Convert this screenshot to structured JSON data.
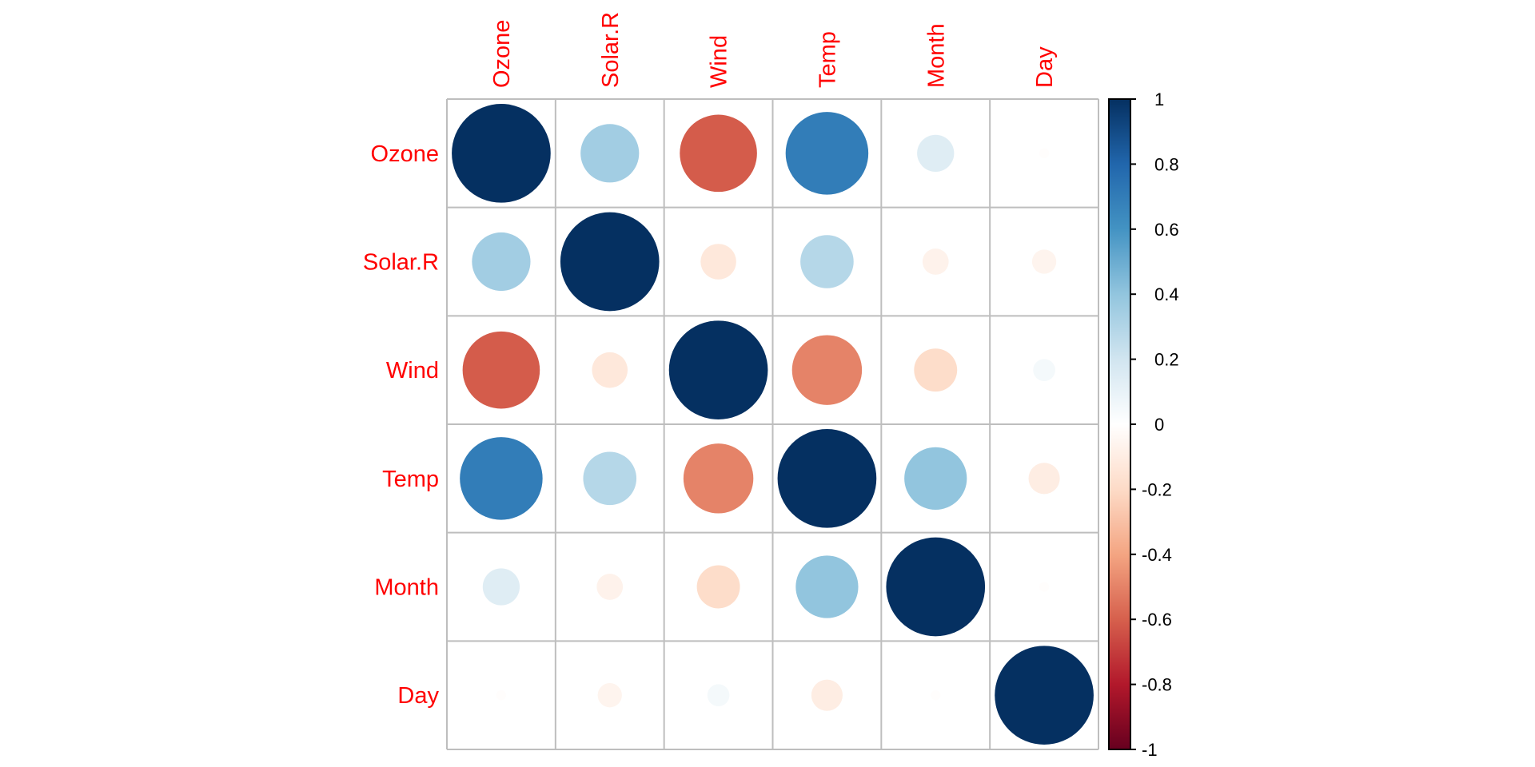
{
  "chart_data": {
    "type": "heatmap",
    "method": "circle",
    "title": "",
    "variables": [
      "Ozone",
      "Solar.R",
      "Wind",
      "Temp",
      "Month",
      "Day"
    ],
    "row_labels": [
      "Ozone",
      "Solar.R",
      "Wind",
      "Temp",
      "Month",
      "Day"
    ],
    "col_labels": [
      "Ozone",
      "Solar.R",
      "Wind",
      "Temp",
      "Month",
      "Day"
    ],
    "matrix": [
      [
        1.0,
        0.35,
        -0.61,
        0.7,
        0.14,
        -0.01
      ],
      [
        0.35,
        1.0,
        -0.13,
        0.29,
        -0.07,
        -0.06
      ],
      [
        -0.61,
        -0.13,
        1.0,
        -0.5,
        -0.19,
        0.05
      ],
      [
        0.7,
        0.29,
        -0.5,
        1.0,
        0.4,
        -0.1
      ],
      [
        0.14,
        -0.07,
        -0.19,
        0.4,
        1.0,
        -0.01
      ],
      [
        -0.01,
        -0.06,
        0.05,
        -0.1,
        -0.01,
        1.0
      ]
    ],
    "label_color": "#ff0000",
    "grid_color": "#bebebe",
    "colorbar": {
      "range": [
        -1,
        1
      ],
      "ticks": [
        "1",
        "0.8",
        "0.6",
        "0.4",
        "0.2",
        "0",
        "-0.2",
        "-0.4",
        "-0.6",
        "-0.8",
        "-1"
      ],
      "tick_values": [
        1,
        0.8,
        0.6,
        0.4,
        0.2,
        0,
        -0.2,
        -0.4,
        -0.6,
        -0.8,
        -1
      ],
      "palette": [
        "#67001F",
        "#B2182B",
        "#D6604D",
        "#F4A582",
        "#FDDBC7",
        "#FFFFFF",
        "#D1E5F0",
        "#92C5DE",
        "#4393C3",
        "#2166AC",
        "#053061"
      ],
      "placement": "right"
    }
  }
}
